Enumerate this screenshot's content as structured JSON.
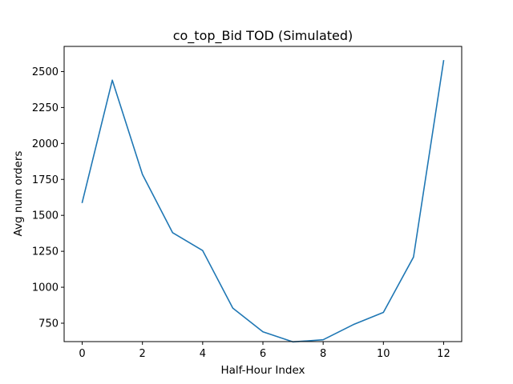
{
  "chart_data": {
    "type": "line",
    "title": "co_top_Bid TOD (Simulated)",
    "xlabel": "Half-Hour Index",
    "ylabel": "Avg num orders",
    "x": [
      0,
      1,
      2,
      3,
      4,
      5,
      6,
      7,
      8,
      9,
      10,
      11,
      12
    ],
    "series": [
      {
        "values": [
          1590,
          2440,
          1785,
          1380,
          1255,
          855,
          690,
          620,
          635,
          740,
          825,
          1210,
          2575
        ],
        "color": "#1f77b4"
      }
    ],
    "xlim": [
      -0.6,
      12.6
    ],
    "ylim": [
      622,
      2675
    ],
    "xticks": [
      0,
      2,
      4,
      6,
      8,
      10,
      12
    ],
    "yticks": [
      750,
      1000,
      1250,
      1500,
      1750,
      2000,
      2250,
      2500
    ],
    "grid": false,
    "legend": "none"
  }
}
